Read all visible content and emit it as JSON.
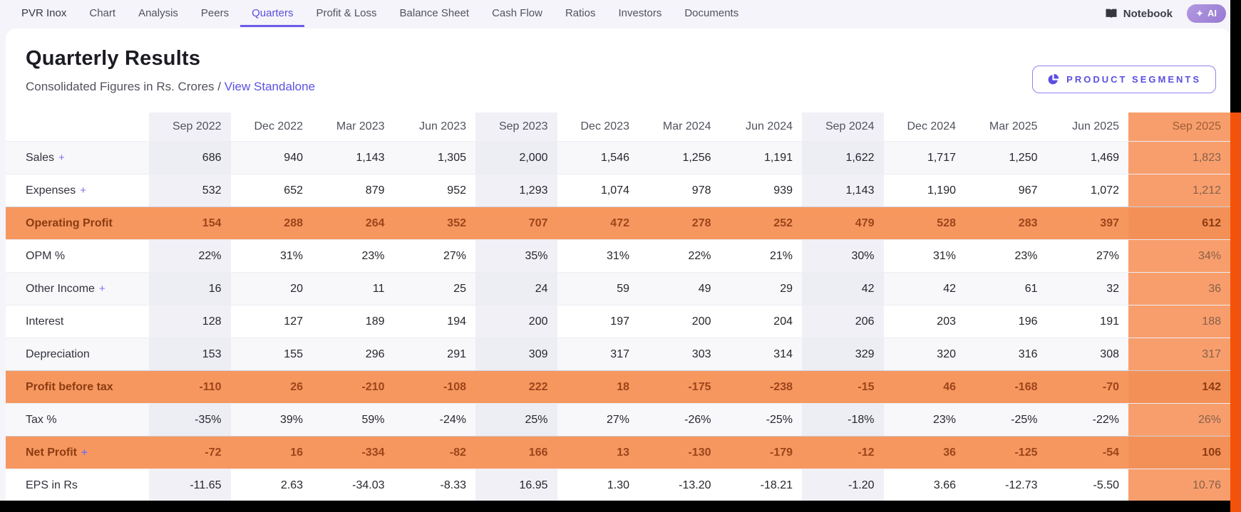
{
  "nav": {
    "items": [
      {
        "label": "PVR Inox",
        "active": false
      },
      {
        "label": "Chart",
        "active": false
      },
      {
        "label": "Analysis",
        "active": false
      },
      {
        "label": "Peers",
        "active": false
      },
      {
        "label": "Quarters",
        "active": true
      },
      {
        "label": "Profit & Loss",
        "active": false
      },
      {
        "label": "Balance Sheet",
        "active": false
      },
      {
        "label": "Cash Flow",
        "active": false
      },
      {
        "label": "Ratios",
        "active": false
      },
      {
        "label": "Investors",
        "active": false
      },
      {
        "label": "Documents",
        "active": false
      }
    ],
    "notebook_label": "Notebook",
    "ai_label": "AI"
  },
  "header": {
    "title": "Quarterly Results",
    "subtitle_prefix": "Consolidated Figures in Rs. Crores /",
    "standalone_link": "View Standalone",
    "segments_button": "PRODUCT SEGMENTS"
  },
  "table": {
    "columns": [
      "Sep 2022",
      "Dec 2022",
      "Mar 2023",
      "Jun 2023",
      "Sep 2023",
      "Dec 2023",
      "Mar 2024",
      "Jun 2024",
      "Sep 2024",
      "Dec 2024",
      "Mar 2025",
      "Jun 2025",
      "Sep 2025"
    ],
    "september_tint_columns": [
      0,
      4,
      8
    ],
    "latest_column": 12,
    "rows": [
      {
        "label": "Sales",
        "plus": true,
        "type": "stripe",
        "values": [
          "686",
          "940",
          "1,143",
          "1,305",
          "2,000",
          "1,546",
          "1,256",
          "1,191",
          "1,622",
          "1,717",
          "1,250",
          "1,469",
          "1,823"
        ]
      },
      {
        "label": "Expenses",
        "plus": true,
        "type": "plain",
        "values": [
          "532",
          "652",
          "879",
          "952",
          "1,293",
          "1,074",
          "978",
          "939",
          "1,143",
          "1,190",
          "967",
          "1,072",
          "1,212"
        ]
      },
      {
        "label": "Operating Profit",
        "plus": false,
        "type": "highlight",
        "values": [
          "154",
          "288",
          "264",
          "352",
          "707",
          "472",
          "278",
          "252",
          "479",
          "528",
          "283",
          "397",
          "612"
        ]
      },
      {
        "label": "OPM %",
        "plus": false,
        "type": "plain",
        "values": [
          "22%",
          "31%",
          "23%",
          "27%",
          "35%",
          "31%",
          "22%",
          "21%",
          "30%",
          "31%",
          "23%",
          "27%",
          "34%"
        ]
      },
      {
        "label": "Other Income",
        "plus": true,
        "type": "stripe",
        "values": [
          "16",
          "20",
          "11",
          "25",
          "24",
          "59",
          "49",
          "29",
          "42",
          "42",
          "61",
          "32",
          "36"
        ]
      },
      {
        "label": "Interest",
        "plus": false,
        "type": "plain",
        "values": [
          "128",
          "127",
          "189",
          "194",
          "200",
          "197",
          "200",
          "204",
          "206",
          "203",
          "196",
          "191",
          "188"
        ]
      },
      {
        "label": "Depreciation",
        "plus": false,
        "type": "stripe",
        "values": [
          "153",
          "155",
          "296",
          "291",
          "309",
          "317",
          "303",
          "314",
          "329",
          "320",
          "316",
          "308",
          "317"
        ]
      },
      {
        "label": "Profit before tax",
        "plus": false,
        "type": "highlight",
        "values": [
          "-110",
          "26",
          "-210",
          "-108",
          "222",
          "18",
          "-175",
          "-238",
          "-15",
          "46",
          "-168",
          "-70",
          "142"
        ]
      },
      {
        "label": "Tax %",
        "plus": false,
        "type": "stripe",
        "values": [
          "-35%",
          "39%",
          "59%",
          "-24%",
          "25%",
          "27%",
          "-26%",
          "-25%",
          "-18%",
          "23%",
          "-25%",
          "-22%",
          "26%"
        ]
      },
      {
        "label": "Net Profit",
        "plus": true,
        "type": "highlight",
        "values": [
          "-72",
          "16",
          "-334",
          "-82",
          "166",
          "13",
          "-130",
          "-179",
          "-12",
          "36",
          "-125",
          "-54",
          "106"
        ]
      },
      {
        "label": "EPS in Rs",
        "plus": false,
        "type": "plain",
        "values": [
          "-11.65",
          "2.63",
          "-34.03",
          "-8.33",
          "16.95",
          "1.30",
          "-13.20",
          "-18.21",
          "-1.20",
          "3.66",
          "-12.73",
          "-5.50",
          "10.76"
        ]
      }
    ]
  },
  "colors": {
    "accent_purple": "#5b4fe0",
    "highlight_row_orange": "#f6975f",
    "latest_column_orange": "#f89e6c",
    "edge_strip_orange": "#f4520b",
    "page_background": "#f5f4fa"
  }
}
